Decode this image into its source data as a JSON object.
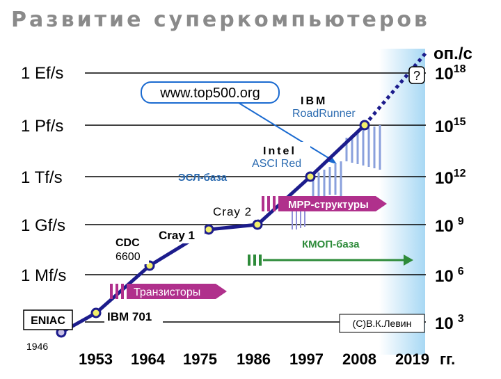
{
  "title": "Развитие суперкомпьютеров",
  "right_axis_title": "оп./с",
  "left_levels": [
    "1 Ef/s",
    "1 Pf/s",
    "1 Tf/s",
    "1 Gf/s",
    "1 Mf/s"
  ],
  "right_levels": [
    {
      "base": "10",
      "exp": "18"
    },
    {
      "base": "10",
      "exp": "15"
    },
    {
      "base": "10",
      "exp": "12"
    },
    {
      "base": "10",
      "exp": "9"
    },
    {
      "base": "10",
      "exp": "6"
    },
    {
      "base": "10",
      "exp": "3"
    }
  ],
  "years": [
    "1953",
    "1964",
    "1975",
    "1986",
    "1997",
    "2008",
    "2019",
    "гг."
  ],
  "first_year": "1946",
  "callout_url": "www.top500.org",
  "question_mark": "?",
  "machines": {
    "eniac": "ENIAC",
    "ibm701": "IBM 701",
    "cdc_line1": "CDC",
    "cdc_line2": "6600",
    "cray1": "Cray 1",
    "cray2": "Cray 2",
    "intel_line1": "Intel",
    "intel_line2": "ASCI Red",
    "ibm_line1": "IBM",
    "ibm_line2": "RoadRunner"
  },
  "eras": {
    "transistors": "Транзисторы",
    "ecl": "ЭСЛ-база",
    "mpp": "MPP-структуры",
    "cmos": "КМОП-база"
  },
  "copyright": "(С)В.К.Левин",
  "colors": {
    "title": "#8a8a8a",
    "curve": "#1c1c8c",
    "node_fill": "#f2ef6b",
    "eniac_fill": "#c8c0e8",
    "era_arrow": "#b0308c",
    "era_text": "#ffffff",
    "green_arrow": "#2e8b3a",
    "blue_label": "#2a6ab0",
    "sky_blue": "#a8d8f4",
    "hatch_blue": "#8aa0dc"
  }
}
